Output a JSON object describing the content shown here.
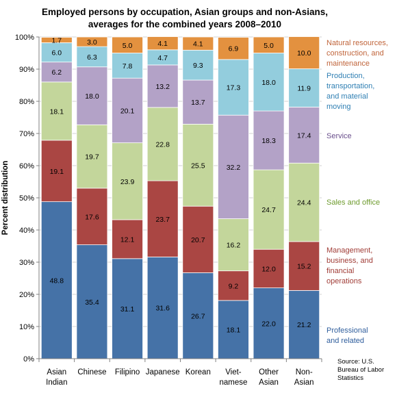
{
  "chart_data": {
    "type": "bar",
    "stacked": true,
    "title_lines": [
      "Employed persons by occupation, Asian groups and non-Asians,",
      "averages for the combined years 2008–2010"
    ],
    "ylabel": "Percent distribution",
    "xlabel": "",
    "ylim": [
      0,
      100
    ],
    "y_ticks": [
      "0%",
      "10%",
      "20%",
      "30%",
      "40%",
      "50%",
      "60%",
      "70%",
      "80%",
      "90%",
      "100%"
    ],
    "categories": [
      [
        "Asian",
        "Indian"
      ],
      [
        "Chinese"
      ],
      [
        "Filipino"
      ],
      [
        "Japanese"
      ],
      [
        "Korean"
      ],
      [
        "Viet-",
        "namese"
      ],
      [
        "Other",
        "Asian"
      ],
      [
        "Non-",
        "Asian"
      ]
    ],
    "series": [
      {
        "name": "Professional and related",
        "legend_lines": [
          "Professional",
          "and related"
        ],
        "color": "#4572A7",
        "text_color": "#2E5D9C",
        "values": [
          48.8,
          35.4,
          31.1,
          31.6,
          26.7,
          18.1,
          22.0,
          21.2
        ],
        "labels": [
          "48.8",
          "35.4",
          "31.1",
          "31.6",
          "26.7",
          "18.1",
          "22.0",
          "21.2"
        ]
      },
      {
        "name": "Management, business, and financial operations",
        "legend_lines": [
          "Management,",
          "business, and",
          "financial",
          "operations"
        ],
        "color": "#AA4643",
        "text_color": "#A03C36",
        "values": [
          19.1,
          17.6,
          12.1,
          23.7,
          20.7,
          9.2,
          12.0,
          15.2
        ],
        "labels": [
          "19.1",
          "17.6",
          "12.1",
          "23.7",
          "20.7",
          "9.2",
          "12.0",
          "15.2"
        ]
      },
      {
        "name": "Sales and office",
        "legend_lines": [
          "Sales and office"
        ],
        "color": "#C3D69B",
        "text_color": "#6E9B2E",
        "values": [
          18.1,
          19.7,
          23.9,
          22.8,
          25.5,
          16.2,
          24.7,
          24.4
        ],
        "labels": [
          "18.1",
          "19.7",
          "23.9",
          "22.8",
          "25.5",
          "16.2",
          "24.7",
          "24.4"
        ]
      },
      {
        "name": "Service",
        "legend_lines": [
          "Service"
        ],
        "color": "#B3A2C7",
        "text_color": "#6A4F8C",
        "values": [
          6.2,
          18.0,
          20.1,
          13.2,
          13.7,
          32.2,
          18.3,
          17.4
        ],
        "labels": [
          "6.2",
          "18.0",
          "20.1",
          "13.2",
          "13.7",
          "32.2",
          "18.3",
          "17.4"
        ]
      },
      {
        "name": "Production, transportation, and material moving",
        "legend_lines": [
          "Production,",
          "transportation,",
          "and material",
          "moving"
        ],
        "color": "#93CDDD",
        "text_color": "#2F7FB3",
        "values": [
          6.0,
          6.3,
          7.8,
          4.7,
          9.3,
          17.3,
          18.0,
          11.9
        ],
        "labels": [
          "6.0",
          "6.3",
          "7.8",
          "4.7",
          "9.3",
          "17.3",
          "18.0",
          "11.9"
        ]
      },
      {
        "name": "Natural resources, construction, and maintenance",
        "legend_lines": [
          "Natural resources,",
          "construction, and",
          "maintenance"
        ],
        "color": "#E3913F",
        "text_color": "#C0643A",
        "values": [
          1.7,
          3.0,
          5.0,
          4.1,
          4.1,
          6.9,
          5.0,
          10.0
        ],
        "labels": [
          "1.7",
          "3.0",
          "5.0",
          "4.1",
          "4.1",
          "6.9",
          "5.0",
          "10.0"
        ]
      }
    ],
    "grid": true,
    "legend_position": "right",
    "source_lines": [
      "Source: U.S.",
      "Bureau of Labor",
      "Statistics"
    ]
  }
}
